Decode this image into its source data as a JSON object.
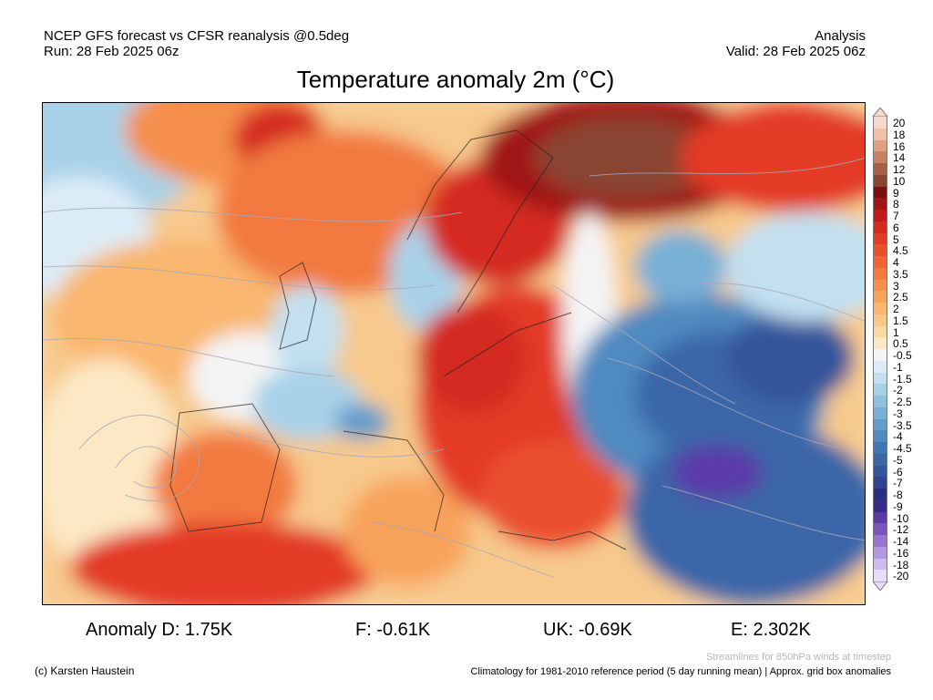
{
  "header": {
    "line1_left": "NCEP GFS forecast vs CFSR reanalysis @0.5deg",
    "line2_left": "Run: 28 Feb 2025 06z",
    "line1_right": "Analysis",
    "line2_right": "Valid: 28 Feb 2025 06z"
  },
  "title": "Temperature anomaly 2m (°C)",
  "legend": {
    "levels": [
      {
        "label": "20",
        "color": "#f7d8cc"
      },
      {
        "label": "18",
        "color": "#f0c0a8"
      },
      {
        "label": "16",
        "color": "#e0a080"
      },
      {
        "label": "14",
        "color": "#c88060"
      },
      {
        "label": "12",
        "color": "#a85f45"
      },
      {
        "label": "10",
        "color": "#8a4530"
      },
      {
        "label": "9",
        "color": "#7a1010"
      },
      {
        "label": "8",
        "color": "#a01515"
      },
      {
        "label": "7",
        "color": "#c01a1a"
      },
      {
        "label": "6",
        "color": "#d42a20"
      },
      {
        "label": "5",
        "color": "#e33b26"
      },
      {
        "label": "4.5",
        "color": "#ea502e"
      },
      {
        "label": "4",
        "color": "#ef6536"
      },
      {
        "label": "3.5",
        "color": "#f27a40"
      },
      {
        "label": "3",
        "color": "#f58f4c"
      },
      {
        "label": "2.5",
        "color": "#f8a35c"
      },
      {
        "label": "2",
        "color": "#f9b66e"
      },
      {
        "label": "1.5",
        "color": "#fac886"
      },
      {
        "label": "1",
        "color": "#fbd9a2"
      },
      {
        "label": "0.5",
        "color": "#fce8c4"
      },
      {
        "label": "-0.5",
        "color": "#f4f4f4"
      },
      {
        "label": "-1",
        "color": "#dcecf6"
      },
      {
        "label": "-1.5",
        "color": "#c2e0f0"
      },
      {
        "label": "-2",
        "color": "#a8d1e8"
      },
      {
        "label": "-2.5",
        "color": "#8fc1df"
      },
      {
        "label": "-3",
        "color": "#77afd5"
      },
      {
        "label": "-3.5",
        "color": "#629dcb"
      },
      {
        "label": "-4",
        "color": "#4f8ac0"
      },
      {
        "label": "-4.5",
        "color": "#4277b5"
      },
      {
        "label": "-5",
        "color": "#3a66a8"
      },
      {
        "label": "-6",
        "color": "#34559b"
      },
      {
        "label": "-7",
        "color": "#2f438e"
      },
      {
        "label": "-8",
        "color": "#2a2f80"
      },
      {
        "label": "-9",
        "color": "#3a2a8a"
      },
      {
        "label": "-10",
        "color": "#5a3aa8"
      },
      {
        "label": "-12",
        "color": "#7a55c0"
      },
      {
        "label": "-14",
        "color": "#9676d0"
      },
      {
        "label": "-16",
        "color": "#b499e0"
      },
      {
        "label": "-18",
        "color": "#cfbcee"
      },
      {
        "label": "-20",
        "color": "#e6dcf8"
      }
    ]
  },
  "stats": {
    "d": "Anomaly D: 1.75K",
    "f": "F: -0.61K",
    "uk": "UK: -0.69K",
    "e": "E: 2.302K"
  },
  "footer": {
    "credit": "(c) Karsten Haustein",
    "streamlines": "Streamlines for 850hPa winds at timestep",
    "climatology": "Climatology for 1981-2010 reference period (5 day running mean) | Approx. grid box anomalies"
  }
}
